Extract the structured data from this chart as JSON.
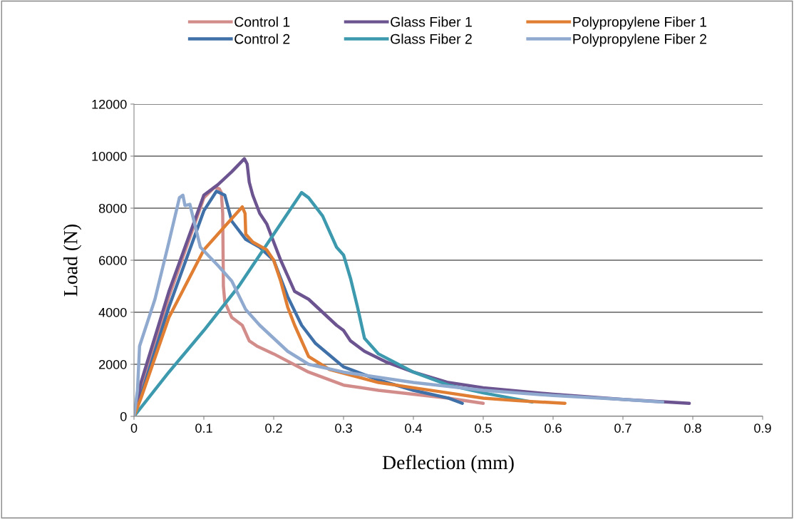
{
  "chart_data": {
    "type": "line",
    "xlabel": "Deflection (mm)",
    "ylabel": "Load (N)",
    "xlim": [
      0,
      0.9
    ],
    "xticks": [
      0,
      0.1,
      0.2,
      0.3,
      0.4,
      0.5,
      0.6,
      0.7,
      0.8,
      0.9
    ],
    "ylim": [
      0,
      12000
    ],
    "yticks": [
      0,
      2000,
      4000,
      6000,
      8000,
      10000,
      12000
    ],
    "grid": "y",
    "legend": "top",
    "marker": "none",
    "line_style": "solid",
    "series": [
      {
        "name": "Control 1",
        "color": "#d28d8b",
        "x": [
          0,
          0.01,
          0.05,
          0.1,
          0.115,
          0.122,
          0.125,
          0.127,
          0.128,
          0.13,
          0.14,
          0.155,
          0.165,
          0.176,
          0.2,
          0.25,
          0.3,
          0.35,
          0.4,
          0.45,
          0.5
        ],
        "values": [
          0,
          900,
          4600,
          8400,
          8800,
          8750,
          8600,
          7800,
          5000,
          4400,
          3800,
          3500,
          2900,
          2700,
          2400,
          1700,
          1200,
          1000,
          850,
          700,
          500
        ]
      },
      {
        "name": "Control 2",
        "color": "#4070a8",
        "x": [
          0,
          0.01,
          0.05,
          0.1,
          0.118,
          0.13,
          0.14,
          0.16,
          0.18,
          0.2,
          0.22,
          0.24,
          0.26,
          0.3,
          0.35,
          0.4,
          0.45,
          0.47
        ],
        "values": [
          0,
          800,
          4200,
          7900,
          8650,
          8500,
          7500,
          6800,
          6500,
          6000,
          4600,
          3500,
          2800,
          1900,
          1400,
          1000,
          700,
          500
        ]
      },
      {
        "name": "Glass Fiber 1",
        "color": "#6c5490",
        "x": [
          0,
          0.01,
          0.05,
          0.1,
          0.12,
          0.14,
          0.158,
          0.162,
          0.165,
          0.17,
          0.18,
          0.19,
          0.2,
          0.21,
          0.22,
          0.23,
          0.25,
          0.27,
          0.29,
          0.3,
          0.31,
          0.33,
          0.36,
          0.4,
          0.45,
          0.5,
          0.6,
          0.7,
          0.795
        ],
        "values": [
          0,
          1300,
          4800,
          8500,
          8900,
          9400,
          9900,
          9700,
          9000,
          8500,
          7800,
          7400,
          6700,
          6000,
          5400,
          4800,
          4500,
          4000,
          3500,
          3300,
          2900,
          2500,
          2100,
          1700,
          1300,
          1100,
          850,
          650,
          500
        ]
      },
      {
        "name": "Glass Fiber 2",
        "color": "#3d9aae",
        "x": [
          0,
          0.05,
          0.1,
          0.15,
          0.2,
          0.24,
          0.25,
          0.27,
          0.29,
          0.3,
          0.31,
          0.32,
          0.33,
          0.35,
          0.4,
          0.45,
          0.5,
          0.57
        ],
        "values": [
          0,
          1700,
          3300,
          5000,
          7000,
          8600,
          8400,
          7700,
          6500,
          6200,
          5300,
          4200,
          3000,
          2400,
          1700,
          1200,
          900,
          550
        ]
      },
      {
        "name": "Polypropylene Fiber 1",
        "color": "#e07f34",
        "x": [
          0,
          0.01,
          0.05,
          0.1,
          0.13,
          0.155,
          0.159,
          0.16,
          0.17,
          0.19,
          0.2,
          0.21,
          0.22,
          0.23,
          0.25,
          0.28,
          0.35,
          0.4,
          0.45,
          0.5,
          0.55,
          0.617
        ],
        "values": [
          0,
          700,
          3800,
          6400,
          7300,
          8050,
          7800,
          7000,
          6700,
          6400,
          6000,
          5200,
          4200,
          3500,
          2300,
          1800,
          1300,
          1100,
          900,
          700,
          600,
          500
        ]
      },
      {
        "name": "Polypropylene Fiber 2",
        "color": "#8fa9cf",
        "x": [
          0,
          0.005,
          0.008,
          0.03,
          0.05,
          0.065,
          0.07,
          0.073,
          0.08,
          0.085,
          0.095,
          0.12,
          0.14,
          0.16,
          0.18,
          0.2,
          0.22,
          0.25,
          0.3,
          0.35,
          0.4,
          0.5,
          0.6,
          0.7,
          0.757
        ],
        "values": [
          0,
          1000,
          2700,
          4500,
          6700,
          8400,
          8500,
          8100,
          8150,
          7600,
          6500,
          5800,
          5200,
          4100,
          3500,
          3000,
          2500,
          2000,
          1700,
          1500,
          1300,
          1000,
          800,
          650,
          550
        ]
      }
    ]
  }
}
